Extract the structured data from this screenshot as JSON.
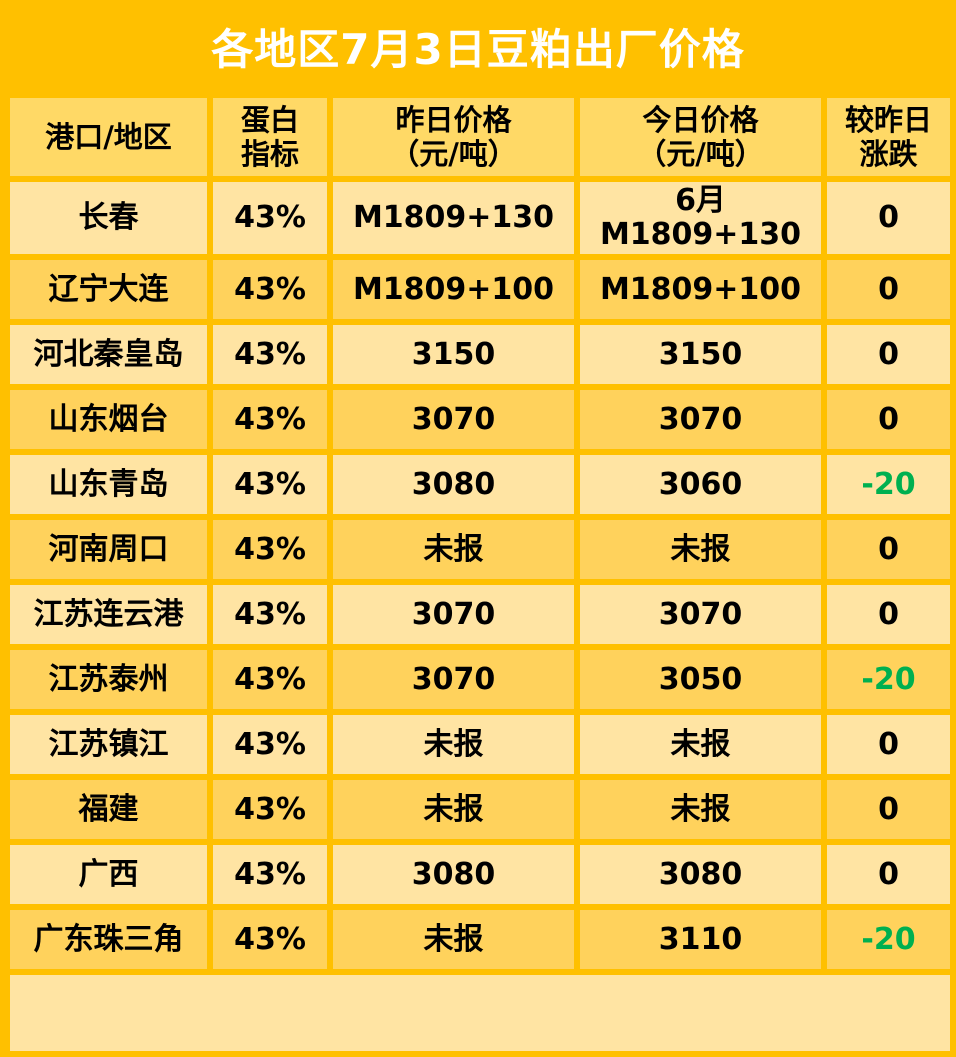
{
  "title": "各地区7月3日豆粕出厂价格",
  "headers": {
    "region": "港口/地区",
    "protein_1": "蛋白",
    "protein_2": "指标",
    "yesterday_1": "昨日价格",
    "yesterday_2": "（元/吨）",
    "today_1": "今日价格",
    "today_2": "（元/吨）",
    "change_1": "较昨日",
    "change_2": "涨跌"
  },
  "rows": [
    {
      "region": "长春",
      "protein": "43%",
      "yesterday": "M1809+130",
      "today_1": "6月",
      "today_2": "M1809+130",
      "change": "0"
    },
    {
      "region": "辽宁大连",
      "protein": "43%",
      "yesterday": "M1809+100",
      "today": "M1809+100",
      "change": "0"
    },
    {
      "region": "河北秦皇岛",
      "protein": "43%",
      "yesterday": "3150",
      "today": "3150",
      "change": "0"
    },
    {
      "region": "山东烟台",
      "protein": "43%",
      "yesterday": "3070",
      "today": "3070",
      "change": "0"
    },
    {
      "region": "山东青岛",
      "protein": "43%",
      "yesterday": "3080",
      "today": "3060",
      "change": "-20"
    },
    {
      "region": "河南周口",
      "protein": "43%",
      "yesterday": "未报",
      "today": "未报",
      "change": "0"
    },
    {
      "region": "江苏连云港",
      "protein": "43%",
      "yesterday": "3070",
      "today": "3070",
      "change": "0"
    },
    {
      "region": "江苏泰州",
      "protein": "43%",
      "yesterday": "3070",
      "today": "3050",
      "change": "-20"
    },
    {
      "region": "江苏镇江",
      "protein": "43%",
      "yesterday": "未报",
      "today": "未报",
      "change": "0"
    },
    {
      "region": "福建",
      "protein": "43%",
      "yesterday": "未报",
      "today": "未报",
      "change": "0"
    },
    {
      "region": "广西",
      "protein": "43%",
      "yesterday": "3080",
      "today": "3080",
      "change": "0"
    },
    {
      "region": "广东珠三角",
      "protein": "43%",
      "yesterday": "未报",
      "today": "3110",
      "change": "-20"
    }
  ],
  "colors": {
    "background": "#FFC000",
    "title_text": "#FFFFFF",
    "header_cell": "#FFD966",
    "row_light": "#FFE4A3",
    "row_dark": "#FFD25C",
    "negative_change": "#00B050"
  }
}
